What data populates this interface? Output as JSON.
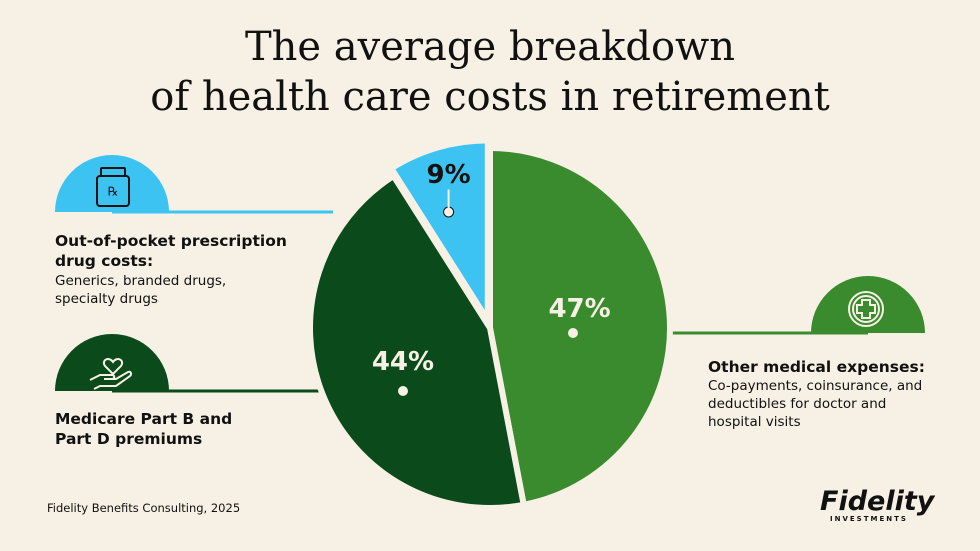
{
  "chart_data": {
    "type": "pie",
    "title": "The average breakdown\nof health care costs in retirement",
    "categories": [
      "Out-of-pocket prescription drug costs:",
      "Medicare Part B and Part D premiums",
      "Other medical expenses:"
    ],
    "descriptions": [
      "Generics, branded drugs, specialty drugs",
      null,
      "Co-payments, coinsurance, and deductibles for doctor and hospital visits"
    ],
    "values": [
      9,
      44,
      47
    ],
    "value_labels": [
      "9%",
      "44%",
      "47%"
    ],
    "colors": [
      "#3cc3f2",
      "#0b4a1a",
      "#3a8a2e"
    ],
    "source": "Fidelity Benefits Consulting, 2025",
    "logo": "Fidelity",
    "logo_subtitle": "INVESTMENTS"
  }
}
